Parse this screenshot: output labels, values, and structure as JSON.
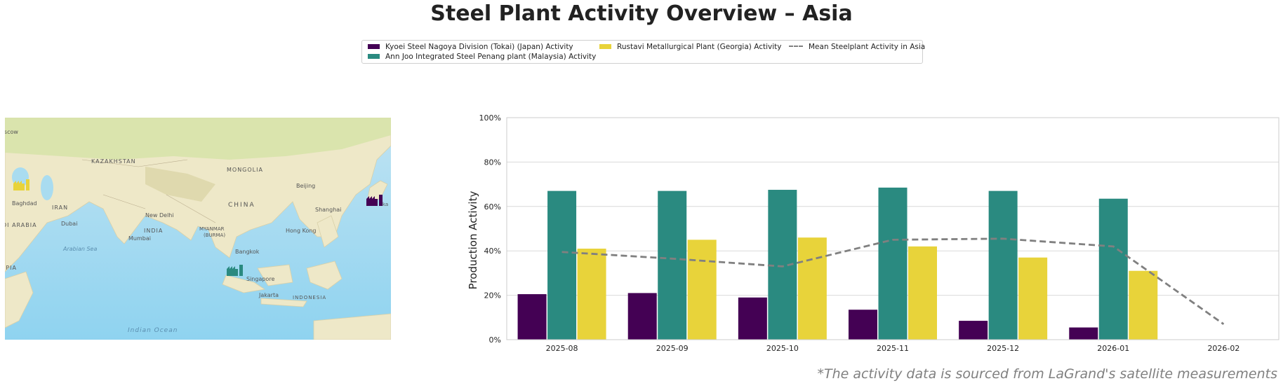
{
  "title": "Steel Plant Activity Overview – Asia",
  "footnote": "*The activity data is sourced from LaGrand's satellite measurements",
  "colors": {
    "kyoei": "#440154",
    "annjoo": "#2a8a80",
    "rustavi": "#e8d33a",
    "mean": "#808080"
  },
  "map": {
    "labels": [
      "oscow",
      "KAZAKHSTAN",
      "MONGOLIA",
      "Beijing",
      "CHINA",
      "Shanghai",
      "Baghdad",
      "IRAN",
      "New Delhi",
      "INDIA",
      "Dubai",
      "DI ARABIA",
      "MYANMAR",
      "(BURMA)",
      "Hong Kong",
      "Mumbai",
      "Bangkok",
      "Arabian Sea",
      "Singapore",
      "Jakarta",
      "INDONESIA",
      "OPIA",
      "Indian Ocean",
      "ka"
    ],
    "plant_icons": [
      "factory-icon-georgia",
      "factory-icon-japan",
      "factory-icon-malaysia"
    ]
  },
  "chart_data": {
    "type": "bar",
    "categories": [
      "2025-08",
      "2025-09",
      "2025-10",
      "2025-11",
      "2025-12",
      "2026-01",
      "2026-02"
    ],
    "series": [
      {
        "name": "Kyoei Steel Nagoya Division (Tokai) (Japan) Activity",
        "values": [
          20.5,
          21,
          19,
          13.5,
          8.5,
          5.5,
          null
        ]
      },
      {
        "name": "Ann Joo Integrated Steel Penang plant (Malaysia) Activity",
        "values": [
          67,
          67,
          67.5,
          68.5,
          67,
          63.5,
          null
        ]
      },
      {
        "name": "Rustavi Metallurgical Plant (Georgia) Activity",
        "values": [
          41,
          45,
          46,
          42,
          37,
          31,
          null
        ]
      }
    ],
    "line_series": {
      "name": "Mean Steelplant Activity in Asia",
      "values": [
        39.5,
        36.5,
        33,
        45,
        45.5,
        42,
        7
      ],
      "style": "dashed"
    },
    "ylabel": "Production Activity",
    "xlabel": "",
    "ylim": [
      0,
      100
    ],
    "yticks": [
      "0%",
      "20%",
      "40%",
      "60%",
      "80%",
      "100%"
    ],
    "grid": true,
    "legend_position": "top-center"
  }
}
